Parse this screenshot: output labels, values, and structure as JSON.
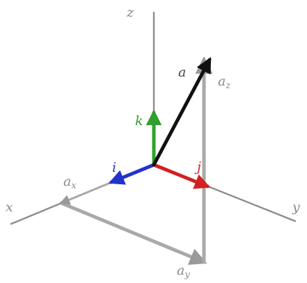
{
  "axes": {
    "z": "z",
    "x": "x",
    "y": "y"
  },
  "unit_vectors": {
    "i": "i",
    "j": "j",
    "k": "k"
  },
  "vector": {
    "main": "a",
    "comp_x": {
      "base": "a",
      "sub": "x"
    },
    "comp_y": {
      "base": "a",
      "sub": "y"
    },
    "comp_z": {
      "base": "a",
      "sub": "z"
    }
  },
  "colors": {
    "axis": "#8c8c8c",
    "component": "#a9a9a9",
    "vector_a": "#111111",
    "unit_i": "#2233cc",
    "unit_j": "#d42020",
    "unit_k": "#2fa02f"
  },
  "icons": {
    "arrowhead": "arrow-icon"
  }
}
